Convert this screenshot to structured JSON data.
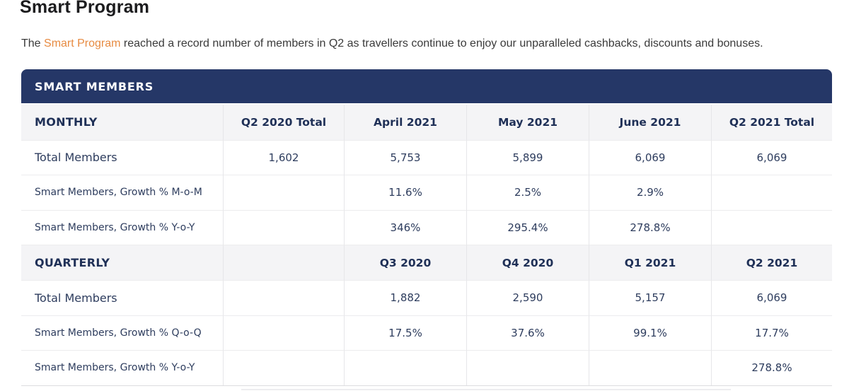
{
  "page": {
    "title": "Smart Program"
  },
  "intro": {
    "prefix": "The ",
    "link_text": "Smart Program",
    "suffix": " reached a record number of members in Q2 as travellers continue to enjoy our unparalleled cashbacks, discounts and bonuses."
  },
  "colors": {
    "header_navy": "#253767",
    "link_orange": "#e78b42",
    "section_row_gray": "#f4f4f6",
    "table_text_navy": "#2e3d5e"
  },
  "table": {
    "title": "SMART MEMBERS",
    "rows": [
      {
        "type": "section",
        "cells": [
          "MONTHLY",
          "Q2 2020 Total",
          "April 2021",
          "May 2021",
          "June 2021",
          "Q2 2021 Total"
        ]
      },
      {
        "type": "data",
        "cells": [
          "Total Members",
          "1,602",
          "5,753",
          "5,899",
          "6,069",
          "6,069"
        ]
      },
      {
        "type": "data",
        "cells": [
          "Smart Members, Growth % M-o-M",
          "",
          "11.6%",
          "2.5%",
          "2.9%",
          ""
        ]
      },
      {
        "type": "data",
        "cells": [
          "Smart Members, Growth % Y-o-Y",
          "",
          "346%",
          "295.4%",
          "278.8%",
          ""
        ]
      },
      {
        "type": "section",
        "cells": [
          "QUARTERLY",
          "",
          "Q3 2020",
          "Q4 2020",
          "Q1 2021",
          "Q2 2021"
        ]
      },
      {
        "type": "data",
        "cells": [
          "Total Members",
          "",
          "1,882",
          "2,590",
          "5,157",
          "6,069"
        ]
      },
      {
        "type": "data",
        "cells": [
          "Smart Members, Growth % Q-o-Q",
          "",
          "17.5%",
          "37.6%",
          "99.1%",
          "17.7%"
        ]
      },
      {
        "type": "data",
        "cells": [
          "Smart Members, Growth % Y-o-Y",
          "",
          "",
          "",
          "",
          "278.8%"
        ]
      }
    ]
  }
}
